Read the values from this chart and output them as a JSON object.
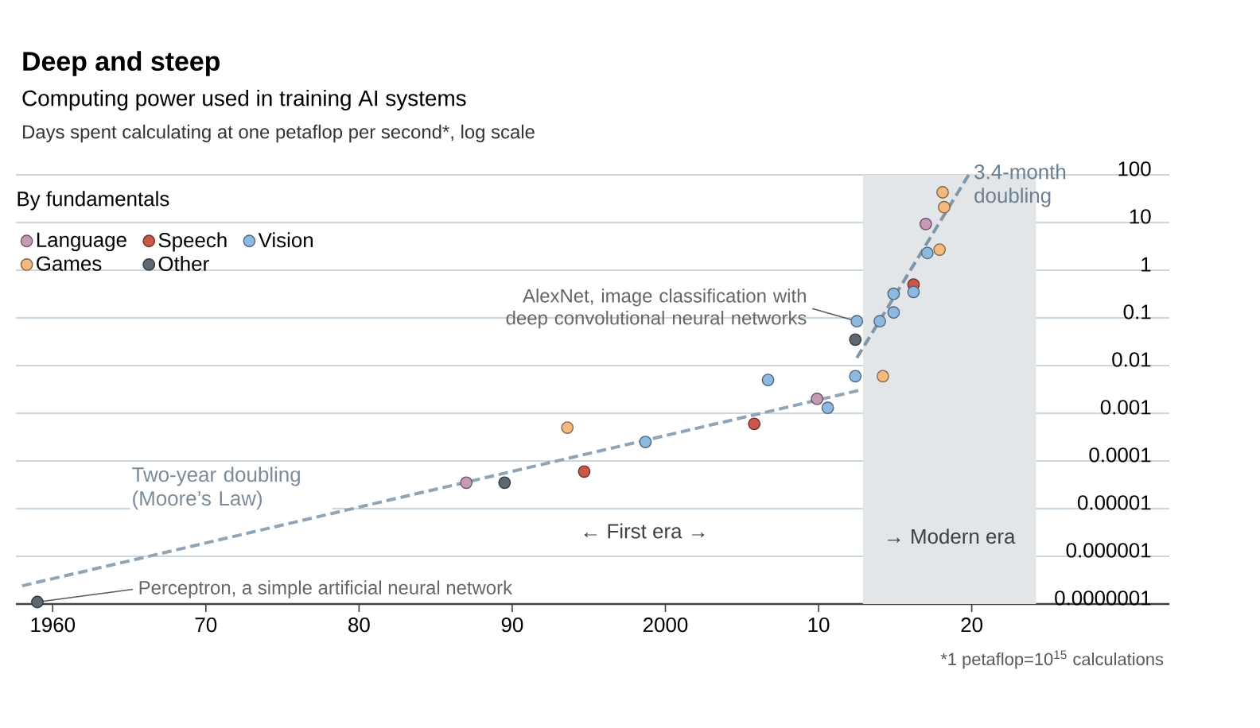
{
  "chart_data": {
    "type": "scatter",
    "title": "Deep and steep",
    "subtitle": "Computing power used in training AI systems",
    "ylabel": "Days spent calculating at one petaflop per second*, log scale",
    "legend_title": "By fundamentals",
    "legend": "top left",
    "grid": "y",
    "marker": "circle",
    "log": "y",
    "xlim": [
      1957.6,
      2032.9
    ],
    "xticks": [
      1960,
      {
        "value": 1970,
        "label": "70"
      },
      {
        "value": 1980,
        "label": "80"
      },
      {
        "value": 1990,
        "label": "90"
      },
      2000,
      {
        "value": 2010,
        "label": "10"
      },
      {
        "value": 2020,
        "label": "20"
      }
    ],
    "ylim": [
      1e-07,
      100
    ],
    "yticks": [
      {
        "value": 1e-07,
        "label": "0.0000001"
      },
      {
        "value": 1e-06,
        "label": "0.000001"
      },
      {
        "value": 1e-05,
        "label": "0.00001"
      },
      {
        "value": 0.0001,
        "label": "0.0001"
      },
      {
        "value": 0.001,
        "label": "0.001"
      },
      {
        "value": 0.01,
        "label": "0.01"
      },
      {
        "value": 0.1,
        "label": "0.1"
      },
      {
        "value": 1,
        "label": "1"
      },
      {
        "value": 10,
        "label": "10"
      },
      {
        "value": 100,
        "label": "100"
      }
    ],
    "series": [
      {
        "name": "Language",
        "color": "#c49ab5",
        "x": [
          1987.0,
          2009.9,
          2017.0
        ],
        "values": [
          3.5e-05,
          0.002,
          9.3
        ]
      },
      {
        "name": "Speech",
        "color": "#c9574a",
        "x": [
          1994.7,
          2005.8,
          2016.2
        ],
        "values": [
          6e-05,
          0.0006,
          0.5
        ]
      },
      {
        "name": "Vision",
        "color": "#8db8e0",
        "x": [
          1998.7,
          2006.7,
          2010.6,
          2012.4,
          2012.5,
          2014.0,
          2014.9,
          2014.9,
          2016.2,
          2017.1
        ],
        "values": [
          0.00025,
          0.005,
          0.0013,
          0.006,
          0.085,
          0.085,
          0.13,
          0.32,
          0.35,
          2.3
        ]
      },
      {
        "name": "Games",
        "color": "#f3ba7e",
        "x": [
          1993.6,
          2014.2,
          2017.9,
          2018.2,
          2018.1
        ],
        "values": [
          0.0005,
          0.006,
          2.7,
          21,
          43
        ]
      },
      {
        "name": "Other",
        "color": "#5f6770",
        "x": [
          1959.0,
          1989.5,
          2012.4
        ],
        "values": [
          1.1e-07,
          3.5e-05,
          0.035
        ]
      },
      {
        "name": "Two-year doubling (Moore’s Law)",
        "type": "line",
        "line_style": "dashed",
        "marker": "none",
        "color": "#8fa4b6",
        "x": [
          1958.0,
          2012.6
        ],
        "values": [
          2.4e-07,
          0.003
        ]
      },
      {
        "name": "3.4-month doubling",
        "type": "line",
        "line_style": "dashed",
        "marker": "none",
        "color": "#7f95a8",
        "x": [
          2012.5,
          2019.8
        ],
        "values": [
          0.0145,
          100
        ]
      }
    ],
    "bands": [
      {
        "axis": "x",
        "from": 2012.9,
        "to": 2024.2,
        "label": "→ Modern era",
        "color": "#e3e6e8"
      }
    ],
    "annotations": [
      {
        "text": "AlexNet, image classification with deep convolutional neural networks",
        "x": 2012.5,
        "y": 0.085
      },
      {
        "text": "Perceptron, a simple artificial neural network",
        "x": 1959.0,
        "y": 1.1e-07
      },
      "← First era →",
      "*1 petaflop=10$^{15}$ calculations"
    ]
  }
}
